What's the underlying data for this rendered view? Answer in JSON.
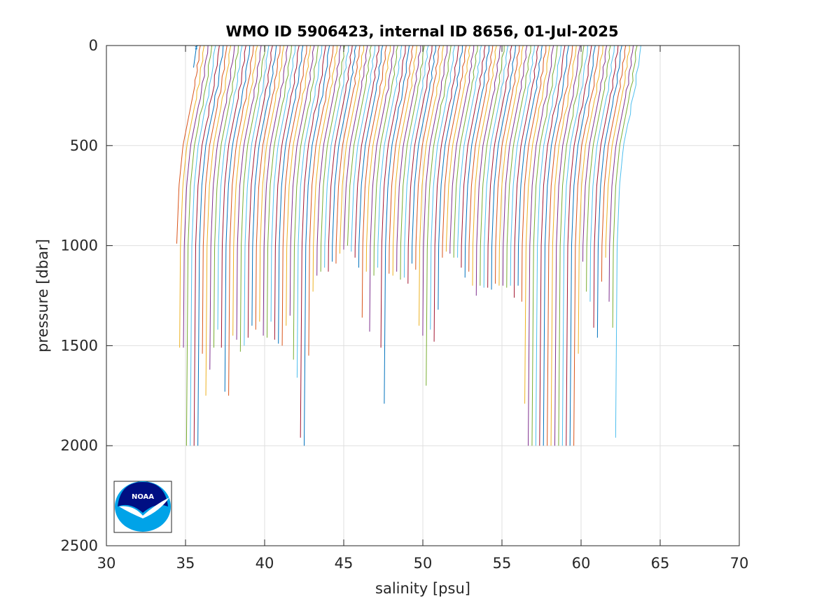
{
  "chart_data": {
    "type": "line",
    "title": "WMO ID 5906423, internal ID 8656, 01-Jul-2025",
    "xlabel": "salinity [psu]",
    "ylabel": "pressure [dbar]",
    "xlim": [
      30,
      70
    ],
    "ylim": [
      0,
      2500
    ],
    "y_reversed": true,
    "grid": true,
    "xticks": [
      30,
      35,
      40,
      45,
      50,
      55,
      60,
      65,
      70
    ],
    "yticks": [
      0,
      500,
      1000,
      1500,
      2000,
      2500
    ],
    "xtick_labels": [
      "30",
      "35",
      "40",
      "45",
      "50",
      "55",
      "60",
      "65",
      "70"
    ],
    "ytick_labels": [
      "0",
      "500",
      "1000",
      "1500",
      "2000",
      "2500"
    ],
    "colors": [
      "#0072BD",
      "#D95319",
      "#EDB120",
      "#7E2F8E",
      "#77AC30",
      "#4DBEEE",
      "#A2142F"
    ],
    "profile_offset_psu": 0.24,
    "profile_surface_salinity_start": 35.7,
    "profile_max_pressures": [
      110,
      990,
      1510,
      1510,
      2000,
      2000,
      2000,
      2000,
      1540,
      1750,
      1620,
      1510,
      1420,
      1510,
      1730,
      1750,
      1450,
      1470,
      1530,
      1500,
      1460,
      1400,
      1420,
      1380,
      1450,
      1460,
      1380,
      1470,
      1490,
      1500,
      1400,
      1350,
      1570,
      1660,
      1960,
      2000,
      1550,
      1230,
      1150,
      1130,
      1110,
      1130,
      1080,
      1090,
      1040,
      1020,
      1000,
      1030,
      1060,
      1110,
      1360,
      1130,
      1430,
      1150,
      1110,
      1510,
      1790,
      1140,
      1150,
      1130,
      1170,
      1160,
      1190,
      1090,
      1120,
      1400,
      1450,
      1700,
      1420,
      1480,
      1320,
      1060,
      1030,
      1040,
      1060,
      1060,
      1110,
      1160,
      1130,
      1200,
      1250,
      1200,
      1210,
      1210,
      1220,
      1190,
      1200,
      1200,
      1210,
      1200,
      1260,
      1200,
      1280,
      1790,
      2000,
      2000,
      2000,
      2000,
      2000,
      2000,
      2000,
      2000,
      2000,
      2000,
      2000,
      2000,
      2000,
      1540,
      1080,
      1230,
      1280,
      1410,
      1460,
      1180,
      1060,
      1280,
      1410,
      1960
    ],
    "profile_shape": {
      "surface_to_deep_drop_psu": 1.6,
      "note_depths_dbar": [
        0,
        200,
        500,
        700,
        1000,
        2000
      ],
      "relative_offsets_psu": [
        0.0,
        -0.35,
        -1.1,
        -1.35,
        -1.5,
        -1.6
      ]
    }
  },
  "logo": {
    "label": "NOAA"
  }
}
